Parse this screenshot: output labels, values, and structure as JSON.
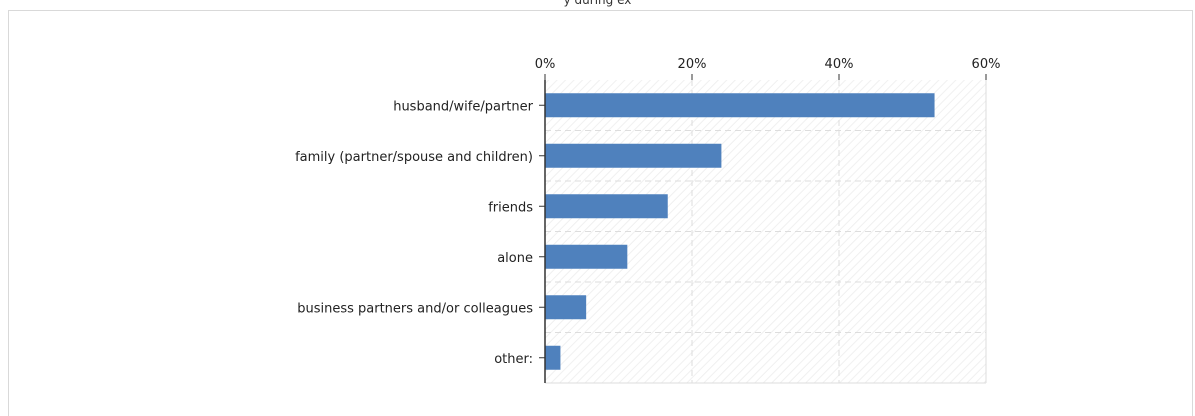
{
  "header": {
    "title": "y during ex"
  },
  "chart_data": {
    "type": "bar",
    "orientation": "horizontal",
    "categories": [
      "husband/wife/partner",
      "family (partner/spouse and children)",
      "friends",
      "alone",
      "business partners and/or colleagues",
      "other:"
    ],
    "values": [
      53.0,
      24.0,
      16.7,
      11.2,
      5.6,
      2.1
    ],
    "xlim": [
      0,
      60
    ],
    "xticks": [
      "0%",
      "20%",
      "40%",
      "60%"
    ],
    "xtick_values": [
      0,
      20,
      40,
      60
    ],
    "title": "",
    "xlabel": "",
    "ylabel": "",
    "grid": true,
    "legend": "none",
    "bar_color": "#4f81bd",
    "grid_color": "#dddddd"
  }
}
